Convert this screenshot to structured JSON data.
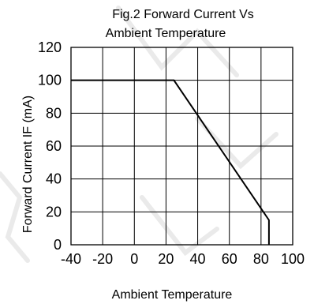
{
  "chart_data": {
    "type": "line",
    "title_lines": [
      "Fig.2 Forward Current Vs",
      "Ambient Temperature"
    ],
    "xlabel": "Ambient Temperature",
    "ylabel": "Forward Current IF (mA)",
    "xlim": [
      -40,
      100
    ],
    "ylim": [
      0,
      120
    ],
    "x_ticks": [
      -40,
      -20,
      0,
      20,
      40,
      60,
      80,
      100
    ],
    "y_ticks": [
      0,
      20,
      40,
      60,
      80,
      100,
      120
    ],
    "grid": true,
    "series": [
      {
        "x": [
          -40,
          25,
          85,
          85
        ],
        "y": [
          100,
          100,
          15,
          0
        ]
      }
    ]
  },
  "colors": {
    "line": "#000000",
    "grid": "#000000",
    "watermark": "#d9d9d9"
  }
}
